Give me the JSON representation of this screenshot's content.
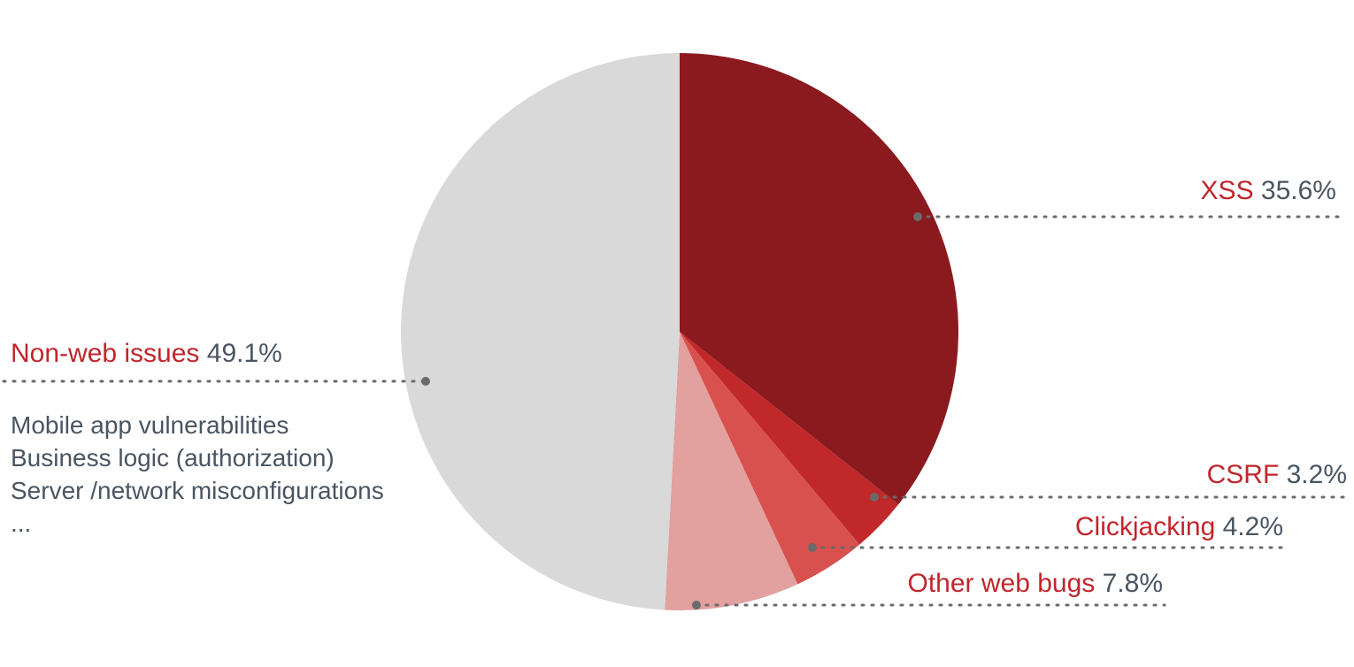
{
  "chart_data": {
    "type": "pie",
    "title": "",
    "slices": [
      {
        "label": "XSS",
        "value": 35.6,
        "value_label": "35.6%",
        "color": "#8b1a1e"
      },
      {
        "label": "CSRF",
        "value": 3.2,
        "value_label": "3.2%",
        "color": "#c0282a"
      },
      {
        "label": "Clickjacking",
        "value": 4.2,
        "value_label": "4.2%",
        "color": "#d8514f"
      },
      {
        "label": "Other web bugs",
        "value": 7.8,
        "value_label": "7.8%",
        "color": "#e2a09f"
      },
      {
        "label": "Non-web issues",
        "value": 49.1,
        "value_label": "49.1%",
        "color": "#d9d9d9"
      }
    ],
    "non_web_details": [
      "Mobile app vulnerabilities",
      "Business logic (authorization)",
      "Server /network misconfigurations",
      "..."
    ]
  },
  "colors": {
    "label_name": "#c0262c",
    "label_value": "#4a5561",
    "detail_text": "#4a5561",
    "leader": "#6b6b6b"
  }
}
